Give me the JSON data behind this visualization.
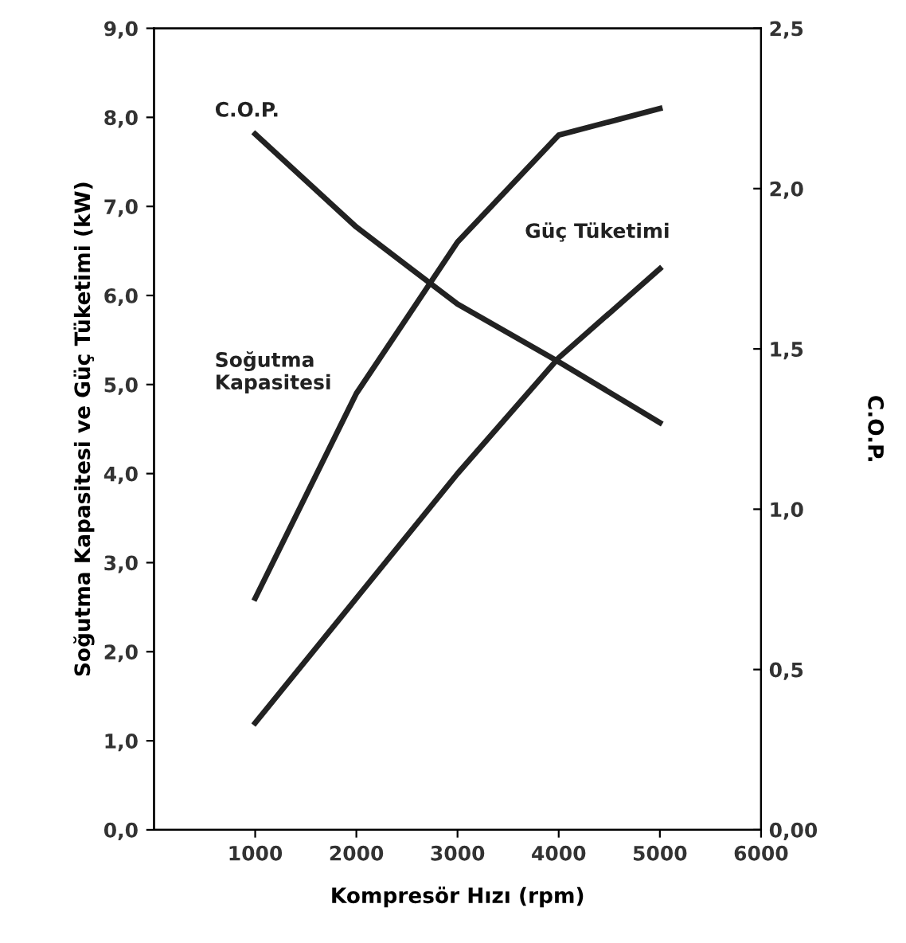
{
  "chart_data": {
    "type": "line",
    "xlabel": "Kompresör Hızı (rpm)",
    "ylabel": "Soğutma Kapasitesi ve Güç Tüketimi (kW)",
    "y2label": "C.O.P.",
    "x": [
      1000,
      2000,
      3000,
      4000,
      5000
    ],
    "series": [
      {
        "name": "Soğutma Kapasitesi",
        "color": "#222222",
        "values": [
          2.6,
          4.9,
          6.6,
          7.8,
          8.1
        ]
      },
      {
        "name": "Güç Tüketimi",
        "color": "#222222",
        "values": [
          1.2,
          2.6,
          4.0,
          5.3,
          6.3
        ]
      },
      {
        "name": "C.O.P.",
        "color": "#222222",
        "axis": "y2",
        "values": [
          2.17,
          1.88,
          1.64,
          1.46,
          1.27
        ]
      }
    ],
    "xlim": [
      0,
      6000
    ],
    "xticks": [
      1000,
      2000,
      3000,
      4000,
      5000,
      6000
    ],
    "ylim": [
      0,
      9
    ],
    "yticks": [
      {
        "value": 0,
        "label": "0,0"
      },
      {
        "value": 1,
        "label": "1,0"
      },
      {
        "value": 2,
        "label": "2,0"
      },
      {
        "value": 3,
        "label": "3,0"
      },
      {
        "value": 4,
        "label": "4,0"
      },
      {
        "value": 5,
        "label": "5,0"
      },
      {
        "value": 6,
        "label": "6,0"
      },
      {
        "value": 7,
        "label": "7,0"
      },
      {
        "value": 8,
        "label": "8,0"
      },
      {
        "value": 9,
        "label": "9,0"
      }
    ],
    "y2lim": [
      0,
      2.5
    ],
    "y2ticks": [
      {
        "value": 0,
        "label": "0,00"
      },
      {
        "value": 0.5,
        "label": "0,5"
      },
      {
        "value": 1,
        "label": "1,0"
      },
      {
        "value": 1.5,
        "label": "1,5"
      },
      {
        "value": 2,
        "label": "2,0"
      },
      {
        "value": 2.5,
        "label": "2,5"
      }
    ],
    "grid": false,
    "legend": false,
    "marker": "none",
    "line_style": "solid"
  }
}
